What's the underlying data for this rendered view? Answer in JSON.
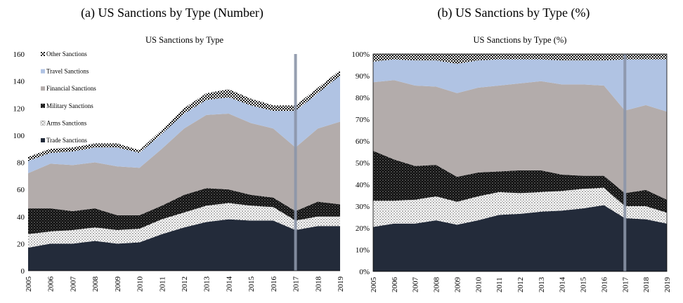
{
  "titles": {
    "left": "(a) US Sanctions by Type (Number)",
    "right": "(b) US Sanctions by Type (%)"
  },
  "chart_data": [
    {
      "type": "area",
      "title": "US Sanctions by Type",
      "stacked": true,
      "x": [
        "2005",
        "2006",
        "2007",
        "2008",
        "2009",
        "2010",
        "2011",
        "2012",
        "2013",
        "2014",
        "2015",
        "2016",
        "2017",
        "2018",
        "2019"
      ],
      "ylim": [
        0,
        160
      ],
      "yticks": [
        "0",
        "20",
        "40",
        "60",
        "80",
        "100",
        "120",
        "140",
        "160"
      ],
      "legend_position": "top-left",
      "vertical_marker": "2017",
      "series": [
        {
          "name": "Trade Sanctions",
          "color": "#232b3a",
          "pattern": "solid",
          "values": [
            17,
            20,
            20,
            22,
            20,
            21,
            27,
            32,
            36,
            38,
            37,
            37,
            30,
            33,
            33
          ]
        },
        {
          "name": "Arms Sanctions",
          "color": "#ffffff",
          "pattern": "dots",
          "values": [
            10,
            9,
            10,
            10,
            10,
            10,
            11,
            11,
            12,
            12,
            11,
            10,
            7,
            7,
            7
          ]
        },
        {
          "name": "Military Sanctions",
          "color": "#0e0e0e",
          "pattern": "dots",
          "values": [
            19,
            17,
            14,
            14,
            11,
            10,
            10,
            13,
            13,
            10,
            8,
            7,
            7,
            11,
            9
          ]
        },
        {
          "name": "Financial Sanctions",
          "color": "#b3acab",
          "pattern": "solid",
          "values": [
            26,
            33,
            34,
            34,
            36,
            35,
            42,
            49,
            54,
            56,
            53,
            51,
            47,
            54,
            61
          ]
        },
        {
          "name": "Travel Sanctions",
          "color": "#b0c3e3",
          "pattern": "solid",
          "values": [
            9,
            8,
            10,
            11,
            14,
            11,
            11,
            11,
            11,
            12,
            13,
            13,
            27,
            26,
            34
          ]
        },
        {
          "name": "Other Sanctions",
          "color": "#1a1a1a",
          "pattern": "checker",
          "values": [
            3,
            3,
            3,
            3,
            3,
            2,
            3,
            4,
            5,
            6,
            5,
            4,
            4,
            4,
            4
          ]
        }
      ]
    },
    {
      "type": "area",
      "title": "US Sanctions by Type (%)",
      "stacked": true,
      "x": [
        "2005",
        "2006",
        "2007",
        "2008",
        "2009",
        "2010",
        "2011",
        "2012",
        "2013",
        "2014",
        "2015",
        "2016",
        "2017",
        "2018",
        "2019"
      ],
      "ylim": [
        0,
        100
      ],
      "yticks": [
        "0%",
        "10%",
        "20%",
        "30%",
        "40%",
        "50%",
        "60%",
        "70%",
        "80%",
        "90%",
        "100%"
      ],
      "vertical_marker": "2017",
      "series": [
        {
          "name": "Trade Sanctions",
          "color": "#232b3a",
          "pattern": "solid",
          "values": [
            20.5,
            22,
            22,
            23.5,
            21.5,
            23.5,
            26,
            26.5,
            27.5,
            28,
            29,
            30.5,
            24.5,
            24,
            22
          ]
        },
        {
          "name": "Arms Sanctions",
          "color": "#ffffff",
          "pattern": "dots",
          "values": [
            12,
            10.5,
            11,
            11,
            10.5,
            11,
            10.5,
            9.5,
            9,
            9,
            9,
            8,
            5.5,
            6,
            5
          ]
        },
        {
          "name": "Military Sanctions",
          "color": "#0e0e0e",
          "pattern": "dots",
          "values": [
            23,
            19,
            15.5,
            14.5,
            11.5,
            11,
            9.5,
            10.5,
            10,
            7.5,
            6,
            5.5,
            6,
            7.5,
            6
          ]
        },
        {
          "name": "Financial Sanctions",
          "color": "#b3acab",
          "pattern": "solid",
          "values": [
            31.5,
            36.5,
            37,
            36,
            38.5,
            39,
            39.5,
            40,
            41,
            41.5,
            42,
            41.5,
            38,
            39,
            40.5
          ]
        },
        {
          "name": "Travel Sanctions",
          "color": "#b0c3e3",
          "pattern": "solid",
          "values": [
            9.5,
            9.5,
            11.5,
            12,
            13.5,
            12.5,
            12,
            11,
            10,
            11,
            11,
            11.5,
            23.5,
            21,
            24
          ]
        },
        {
          "name": "Other Sanctions",
          "color": "#1a1a1a",
          "pattern": "checker",
          "values": [
            3.5,
            2.5,
            3,
            3,
            4.5,
            3,
            2.5,
            2.5,
            2.5,
            3,
            3,
            3,
            2.5,
            2.5,
            2.5
          ]
        }
      ]
    }
  ]
}
